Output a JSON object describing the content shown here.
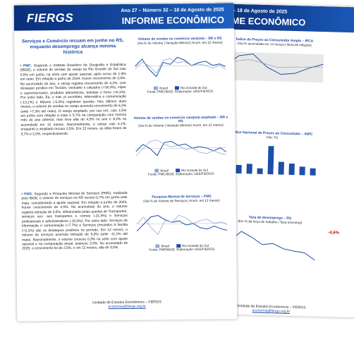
{
  "front": {
    "header": {
      "logo": "FIERGS",
      "issue": "Ano 27 – Número 32 – 18 de Agosto de 2025",
      "title": "INFORME ECONÔMICO"
    },
    "headline": "Serviços e Comércio recuam em junho no RS, enquanto desemprego alcança mínima histórica",
    "paragraphs": [
      {
        "lead": "PMC.",
        "text": " Segundo o Instituto Brasileiro de Geografia e Estatística (IBGE), o volume de vendas do varejo no Rio Grande do Sul caiu 0,5% em junho, na série com ajuste sazonal, após recuo de 1,9% em maio. Em relação a junho de 2024, houve crescimento de 2,6%. No acumulado do ano, o varejo registra crescimento de 4,2%, com destaque positivo em Tecidos, vestuário e calçados (+16,3%), Hiper e supermercados, produtos alimentícios, bebidas e fumo (+6,1%). Por outro lado, Eq. e mat. p/ escritório, informática e comunicação (-13,1%) e Móveis (-5,5%) registram quedas. Nos últimos doze meses, o volume de vendas no varejo acumula crescimento de 6,2% (ante +7,3% até maio). O varejo ampliado, por sua vez, caiu 1,5% em junho com relação a maio e 5,7% na comparação com mesmo mês do ano anterior, mas teve alta de 4,5% no ano e 8,2% no acumulado em 12 meses. Nacionalmente, o varejo caiu 0,1%, enquanto o ampliado recuou 2,5%. Em 12 meses, as altas foram de 3,7% e 2,0%, respectivamente."
      },
      {
        "lead": "PMS.",
        "text": " Segundo a Pesquisa Mensal de Serviços (PMS), realizada pelo IBGE, o volume de serviços no RS recuou 0,7% em junho ante maio, considerando a ajuste sazonal. Em relação a junho de 2024, houve crescimento de 4,5%. No acumulado do ano, o volume registra retração de 0,5%, influenciado pelas quedas de Transportes, serviços aux. aos transportes e correio (-21,5%) e Serviços profissionais e administrativos (-10,0%). Por outro lado, Serviços de informação e comunicação (+7,7%) e Serviços prestados à família (+2,1%) são os destaques positivos no período. Em 12 meses, o volume de serviços acumula retração de 9,3% (ante -11,1% até maio). Nacionalmente, o volume cresceu 0,3% na série com ajuste sazonal e na comparação anual, avançou 2,8%. No acumulado de 2025, o crescimento foi de 2,5%, e em 12 meses, alta de 3,5%."
      }
    ],
    "charts": [
      {
        "title": "Volume de vendas no comércio varejista – BR e RS",
        "subtitle": "(Var.% do Volume | Variação Mensal | Acum. em 12 meses)",
        "legend": [
          "Brasil",
          "Rio Grande do Sul"
        ],
        "source": "Fonte: PMC/IBGE. Elaboração: UEE/FIERGS."
      },
      {
        "title": "Volume de vendas no comércio varejista ampliado – BR e RS",
        "subtitle": "(Var.% do Volume | Variação Mensal | Acum. em 12 meses)",
        "legend": [
          "Brasil",
          "Rio Grande do Sul"
        ],
        "source": "Fonte: PMC/IBGE. Elaboração: UEE/FIERGS."
      },
      {
        "title": "Pesquisa Mensal de Serviços – PMS",
        "subtitle": "(Var.% do Volume de Serviços | Acum. em 12 meses)",
        "legend": [
          "Brasil",
          "Rio Grande do Sul"
        ],
        "source": "Fonte: PMS/IBGE. Elaboração: UEE/FIERGS."
      }
    ],
    "footer": {
      "unit": "Unidade de Estudos Econômicos – FIERGS",
      "email": "economia@fiergs.org.br"
    }
  },
  "back": {
    "header": {
      "issue": "ro 32 – 18 de Agosto de 2025",
      "title": "ORME ECONÔMICO"
    },
    "charts": [
      {
        "title": "Índice de Preços ao Consumidor Amplo – IPCA",
        "subtitle": "(Var.% acumulada em 12 meses | Meta de inflação)"
      },
      {
        "title": "Índice Nacional de Preços ao Consumidor – INPC",
        "subtitle": "(Var. %)"
      },
      {
        "title": "Taxa de desemprego – RS",
        "subtitle": "(Em % da força de trabalho | Taxa trimestral)"
      }
    ],
    "side": "-4,6%",
    "footer": {
      "unit": "Unidade de Estudos Econômicos – FIERGS",
      "email": "economia@fiergs.org.br"
    }
  }
}
